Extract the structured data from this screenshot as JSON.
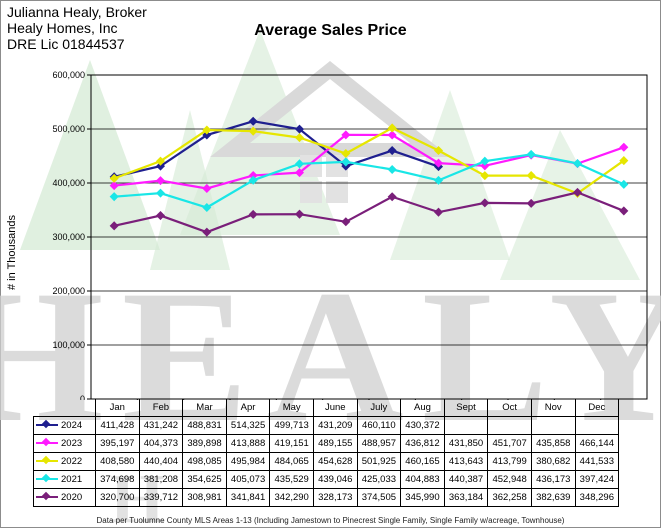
{
  "header": {
    "broker_line1": "Julianna Healy, Broker",
    "broker_line2": "Healy Homes, Inc",
    "broker_line3": "DRE Lic 01844537"
  },
  "watermark": {
    "text": "HEALY",
    "color": "#c9c9c9",
    "tree_color": "#c6e0c6"
  },
  "footnote": "Data per Tuolumne County MLS Areas 1-13 (Including Jamestown to Pinecrest Single Family, Single Family w/acreage, Townhouse)",
  "chart_data": {
    "type": "line",
    "title": "Average Sales Price",
    "ylabel": "# in Thousands",
    "ylim": [
      0,
      600000
    ],
    "yticks": [
      "0",
      "100,000",
      "200,000",
      "300,000",
      "400,000",
      "500,000",
      "600,000"
    ],
    "grid": true,
    "categories": [
      "Jan",
      "Feb",
      "Mar",
      "Apr",
      "May",
      "June",
      "July",
      "Aug",
      "Sept",
      "Oct",
      "Nov",
      "Dec"
    ],
    "series": [
      {
        "name": "2024",
        "color": "#1f1f8f",
        "values": [
          411428,
          431242,
          488831,
          514325,
          499713,
          431209,
          460110,
          430372,
          null,
          null,
          null,
          null
        ],
        "labels": [
          "411,428",
          "431,242",
          "488,831",
          "514,325",
          "499,713",
          "431,209",
          "460,110",
          "430,372",
          "",
          "",
          "",
          ""
        ]
      },
      {
        "name": "2023",
        "color": "#ff1aff",
        "values": [
          395197,
          404373,
          389898,
          413888,
          419151,
          489155,
          488957,
          436812,
          431850,
          451707,
          435858,
          466144
        ],
        "labels": [
          "395,197",
          "404,373",
          "389,898",
          "413,888",
          "419,151",
          "489,155",
          "488,957",
          "436,812",
          "431,850",
          "451,707",
          "435,858",
          "466,144"
        ]
      },
      {
        "name": "2022",
        "color": "#e6e600",
        "values": [
          408580,
          440404,
          498085,
          495984,
          484065,
          454628,
          501925,
          460165,
          413643,
          413799,
          380682,
          441533
        ],
        "labels": [
          "408,580",
          "440,404",
          "498,085",
          "495,984",
          "484,065",
          "454,628",
          "501,925",
          "460,165",
          "413,643",
          "413,799",
          "380,682",
          "441,533"
        ]
      },
      {
        "name": "2021",
        "color": "#19e6e6",
        "values": [
          374698,
          381208,
          354625,
          405073,
          435529,
          439046,
          425033,
          404883,
          440387,
          452948,
          436173,
          397424
        ],
        "labels": [
          "374,698",
          "381,208",
          "354,625",
          "405,073",
          "435,529",
          "439,046",
          "425,033",
          "404,883",
          "440,387",
          "452,948",
          "436,173",
          "397,424"
        ]
      },
      {
        "name": "2020",
        "color": "#7a1f7a",
        "values": [
          320700,
          339712,
          308981,
          341841,
          342290,
          328173,
          374505,
          345990,
          363184,
          362258,
          382639,
          348296
        ],
        "labels": [
          "320,700",
          "339,712",
          "308,981",
          "341,841",
          "342,290",
          "328,173",
          "374,505",
          "345,990",
          "363,184",
          "362,258",
          "382,639",
          "348,296"
        ]
      }
    ]
  }
}
